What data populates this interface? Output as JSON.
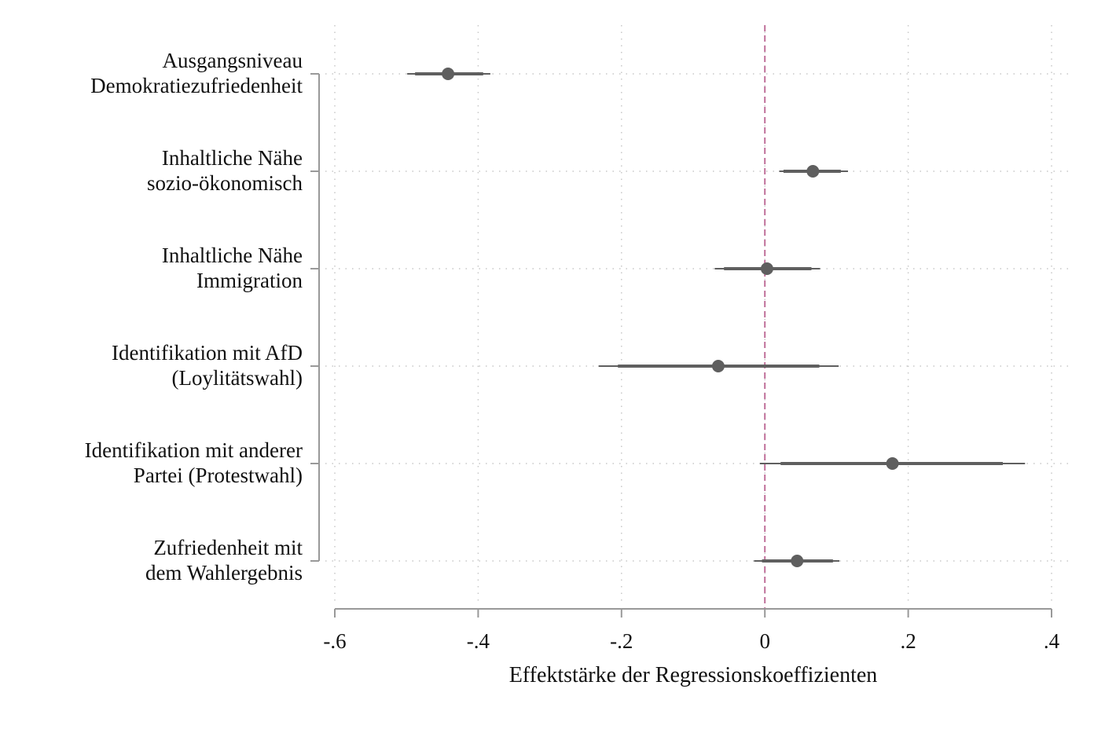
{
  "chart_data": {
    "type": "coefficient-plot",
    "title": "",
    "xlabel": "Effektstärke der Regressionskoeffizienten",
    "ylabel": "",
    "xlim": [
      -0.6,
      0.4
    ],
    "xticks": [
      -0.6,
      -0.4,
      -0.2,
      0,
      0.2,
      0.4
    ],
    "xtick_labels": [
      "-.6",
      "-.4",
      "-.2",
      "0",
      ".2",
      ".4"
    ],
    "grid": true,
    "reference_line": {
      "x": 0,
      "style": "dashed",
      "color": "#c0709a"
    },
    "marker_color": "#5f5f5f",
    "categories": [
      {
        "label": [
          "Ausgangsniveau",
          "Demokratiezufriedenheit"
        ],
        "estimate": -0.442,
        "ci_inner": [
          -0.488,
          -0.393
        ],
        "ci_outer": [
          -0.499,
          -0.383
        ]
      },
      {
        "label": [
          "Inhaltliche Nähe",
          "sozio-ökonomisch"
        ],
        "estimate": 0.067,
        "ci_inner": [
          0.026,
          0.106
        ],
        "ci_outer": [
          0.02,
          0.116
        ]
      },
      {
        "label": [
          "Inhaltliche Nähe",
          "Immigration"
        ],
        "estimate": 0.003,
        "ci_inner": [
          -0.057,
          0.065
        ],
        "ci_outer": [
          -0.07,
          0.077
        ]
      },
      {
        "label": [
          "Identifikation mit AfD",
          "(Loylitätswahl)"
        ],
        "estimate": -0.065,
        "ci_inner": [
          -0.205,
          0.076
        ],
        "ci_outer": [
          -0.232,
          0.103
        ]
      },
      {
        "label": [
          "Identifikation mit anderer",
          "Partei (Protestwahl)"
        ],
        "estimate": 0.178,
        "ci_inner": [
          0.022,
          0.332
        ],
        "ci_outer": [
          -0.007,
          0.363
        ]
      },
      {
        "label": [
          "Zufriedenheit mit",
          "dem Wahlergebnis"
        ],
        "estimate": 0.045,
        "ci_inner": [
          -0.004,
          0.095
        ],
        "ci_outer": [
          -0.015,
          0.104
        ]
      }
    ]
  }
}
